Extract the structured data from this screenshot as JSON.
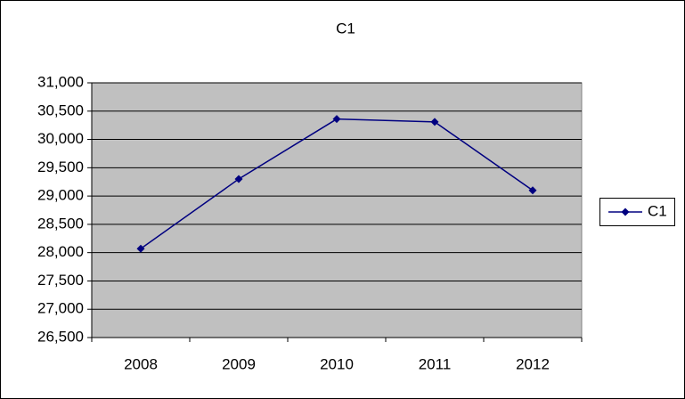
{
  "chart_data": {
    "type": "line",
    "title": "C1",
    "categories": [
      "2008",
      "2009",
      "2010",
      "2011",
      "2012"
    ],
    "series": [
      {
        "name": "C1",
        "color": "#000080",
        "values": [
          28070,
          29300,
          30360,
          30310,
          29100
        ]
      }
    ],
    "ylim": [
      26500,
      31000
    ],
    "yticks": [
      {
        "value": 26500,
        "label": "26,500"
      },
      {
        "value": 27000,
        "label": "27,000"
      },
      {
        "value": 27500,
        "label": "27,500"
      },
      {
        "value": 28000,
        "label": "28,000"
      },
      {
        "value": 28500,
        "label": "28,500"
      },
      {
        "value": 29000,
        "label": "29,000"
      },
      {
        "value": 29500,
        "label": "29,500"
      },
      {
        "value": 30000,
        "label": "30,000"
      },
      {
        "value": 30500,
        "label": "30,500"
      },
      {
        "value": 31000,
        "label": "31,000"
      }
    ],
    "grid": true,
    "legend": "right"
  }
}
